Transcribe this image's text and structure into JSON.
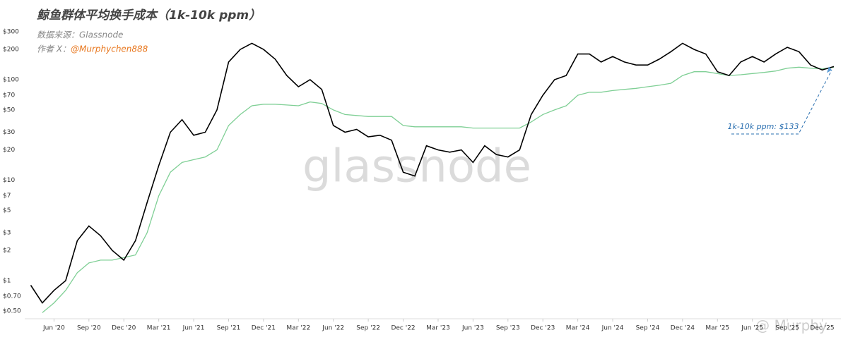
{
  "chart_data": {
    "type": "line",
    "title": "鲸鱼群体平均换手成本（1k-10k ppm）",
    "source": "数据来源：Glassnode",
    "author_label": "作者 X：",
    "author": "@Murphychen888",
    "watermark": "glassnode",
    "watermark2": "@ Murphy",
    "annotation": "1k-10k ppm: $133",
    "log_scale": true,
    "grid": false,
    "x": [
      "2020-04",
      "2020-05",
      "2020-06",
      "2020-07",
      "2020-08",
      "2020-09",
      "2020-10",
      "2020-11",
      "2020-12",
      "2021-01",
      "2021-02",
      "2021-03",
      "2021-04",
      "2021-05",
      "2021-06",
      "2021-07",
      "2021-08",
      "2021-09",
      "2021-10",
      "2021-11",
      "2021-12",
      "2022-01",
      "2022-02",
      "2022-03",
      "2022-04",
      "2022-05",
      "2022-06",
      "2022-07",
      "2022-08",
      "2022-09",
      "2022-10",
      "2022-11",
      "2022-12",
      "2023-01",
      "2023-02",
      "2023-03",
      "2023-04",
      "2023-05",
      "2023-06",
      "2023-07",
      "2023-08",
      "2023-09",
      "2023-10",
      "2023-11",
      "2023-12",
      "2024-01",
      "2024-02",
      "2024-03",
      "2024-04",
      "2024-05",
      "2024-06",
      "2024-07",
      "2024-08",
      "2024-09",
      "2024-10",
      "2024-11",
      "2024-12",
      "2025-01",
      "2025-02",
      "2025-03",
      "2025-04",
      "2025-05",
      "2025-06",
      "2025-07",
      "2025-08",
      "2025-09",
      "2025-10",
      "2025-11",
      "2025-12",
      "2026-01"
    ],
    "series": [
      {
        "color": "#000000",
        "values": [
          0.9,
          0.6,
          0.8,
          1.0,
          2.5,
          3.5,
          2.8,
          2.0,
          1.6,
          2.5,
          6,
          14,
          30,
          40,
          28,
          30,
          50,
          150,
          200,
          230,
          200,
          160,
          110,
          85,
          100,
          80,
          35,
          30,
          32,
          27,
          28,
          25,
          12,
          11,
          22,
          20,
          19,
          20,
          15,
          22,
          18,
          17,
          20,
          45,
          70,
          100,
          110,
          180,
          180,
          150,
          170,
          150,
          140,
          140,
          160,
          190,
          230,
          200,
          180,
          120,
          110,
          150,
          170,
          150,
          180,
          210,
          190,
          140,
          125,
          135
        ]
      },
      {
        "color": "#7fcf95",
        "values": [
          null,
          0.48,
          0.6,
          0.8,
          1.2,
          1.5,
          1.6,
          1.6,
          1.7,
          1.8,
          3,
          7,
          12,
          15,
          16,
          17,
          20,
          35,
          45,
          55,
          57,
          57,
          56,
          55,
          60,
          58,
          50,
          45,
          44,
          43,
          43,
          43,
          35,
          34,
          34,
          34,
          34,
          34,
          33,
          33,
          33,
          33,
          33,
          38,
          45,
          50,
          55,
          70,
          75,
          75,
          78,
          80,
          82,
          85,
          88,
          92,
          110,
          120,
          120,
          115,
          110,
          112,
          115,
          118,
          122,
          130,
          133,
          130,
          128,
          133
        ]
      }
    ],
    "xlim": [
      "2020-03",
      "2026-01"
    ],
    "xticks": [
      {
        "value": "2020-06",
        "label": "Jun '20"
      },
      {
        "value": "2020-09",
        "label": "Sep '20"
      },
      {
        "value": "2020-12",
        "label": "Dec '20"
      },
      {
        "value": "2021-03",
        "label": "Mar '21"
      },
      {
        "value": "2021-06",
        "label": "Jun '21"
      },
      {
        "value": "2021-09",
        "label": "Sep '21"
      },
      {
        "value": "2021-12",
        "label": "Dec '21"
      },
      {
        "value": "2022-03",
        "label": "Mar '22"
      },
      {
        "value": "2022-06",
        "label": "Jun '22"
      },
      {
        "value": "2022-09",
        "label": "Sep '22"
      },
      {
        "value": "2022-12",
        "label": "Dec '22"
      },
      {
        "value": "2023-03",
        "label": "Mar '23"
      },
      {
        "value": "2023-06",
        "label": "Jun '23"
      },
      {
        "value": "2023-09",
        "label": "Sep '23"
      },
      {
        "value": "2023-12",
        "label": "Dec '23"
      },
      {
        "value": "2024-03",
        "label": "Mar '24"
      },
      {
        "value": "2024-06",
        "label": "Jun '24"
      },
      {
        "value": "2024-09",
        "label": "Sep '24"
      },
      {
        "value": "2024-12",
        "label": "Dec '24"
      },
      {
        "value": "2025-03",
        "label": "Mar '25"
      },
      {
        "value": "2025-06",
        "label": "Jun '25"
      },
      {
        "value": "2025-09",
        "label": "Sep '25"
      },
      {
        "value": "2025-12",
        "label": "Dec '25"
      }
    ],
    "ylim": [
      0.4,
      320
    ],
    "yticks": [
      {
        "value": 0.5,
        "label": "$0.50"
      },
      {
        "value": 0.7,
        "label": "$0.70"
      },
      {
        "value": 1,
        "label": "$1"
      },
      {
        "value": 2,
        "label": "$2"
      },
      {
        "value": 3,
        "label": "$3"
      },
      {
        "value": 5,
        "label": "$5"
      },
      {
        "value": 7,
        "label": "$7"
      },
      {
        "value": 10,
        "label": "$10"
      },
      {
        "value": 20,
        "label": "$20"
      },
      {
        "value": 30,
        "label": "$30"
      },
      {
        "value": 50,
        "label": "$50"
      },
      {
        "value": 70,
        "label": "$70"
      },
      {
        "value": 100,
        "label": "$100"
      },
      {
        "value": 200,
        "label": "$200"
      },
      {
        "value": 300,
        "label": "$300"
      }
    ]
  }
}
